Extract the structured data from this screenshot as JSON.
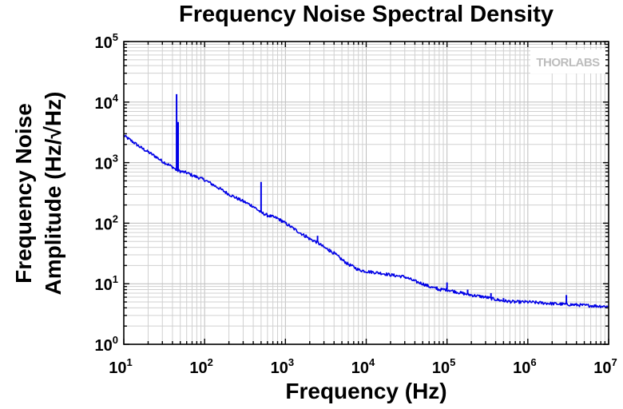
{
  "chart_data": {
    "type": "line",
    "title": "Frequency Noise Spectral Density",
    "ylabel_line1": "Frequency Noise",
    "ylabel_line2": "Amplitude (Hz/√Hz)",
    "xlabel": "Frequency (Hz)",
    "x_scale": "log",
    "y_scale": "log",
    "xlim": [
      10,
      10000000
    ],
    "ylim": [
      1,
      100000
    ],
    "grid": true,
    "watermark": "THORLABS",
    "x_ticks": [
      {
        "base": "10",
        "exp": "1"
      },
      {
        "base": "10",
        "exp": "2"
      },
      {
        "base": "10",
        "exp": "3"
      },
      {
        "base": "10",
        "exp": "4"
      },
      {
        "base": "10",
        "exp": "5"
      },
      {
        "base": "10",
        "exp": "6"
      },
      {
        "base": "10",
        "exp": "7"
      }
    ],
    "y_ticks": [
      {
        "base": "10",
        "exp": "0"
      },
      {
        "base": "10",
        "exp": "1"
      },
      {
        "base": "10",
        "exp": "2"
      },
      {
        "base": "10",
        "exp": "3"
      },
      {
        "base": "10",
        "exp": "4"
      },
      {
        "base": "10",
        "exp": "5"
      }
    ],
    "series": [
      {
        "color": "#0000e6",
        "points": [
          [
            10,
            2800
          ],
          [
            13,
            2200
          ],
          [
            16,
            1800
          ],
          [
            20,
            1500
          ],
          [
            25,
            1250
          ],
          [
            30,
            1050
          ],
          [
            40,
            850
          ],
          [
            45,
            750
          ],
          [
            50,
            720
          ],
          [
            60,
            680
          ],
          [
            70,
            620
          ],
          [
            80,
            580
          ],
          [
            100,
            520
          ],
          [
            150,
            380
          ],
          [
            200,
            300
          ],
          [
            300,
            230
          ],
          [
            400,
            190
          ],
          [
            500,
            150
          ],
          [
            600,
            135
          ],
          [
            800,
            120
          ],
          [
            1000,
            100
          ],
          [
            1500,
            70
          ],
          [
            2000,
            55
          ],
          [
            2500,
            48
          ],
          [
            3000,
            40
          ],
          [
            4000,
            32
          ],
          [
            5000,
            25
          ],
          [
            6000,
            21
          ],
          [
            7000,
            19
          ],
          [
            8000,
            17
          ],
          [
            10000,
            16
          ],
          [
            15000,
            15
          ],
          [
            20000,
            14
          ],
          [
            30000,
            13
          ],
          [
            40000,
            11
          ],
          [
            50000,
            10
          ],
          [
            60000,
            9
          ],
          [
            80000,
            8
          ],
          [
            100000,
            8
          ],
          [
            150000,
            7
          ],
          [
            200000,
            6.5
          ],
          [
            300000,
            6
          ],
          [
            400000,
            5.5
          ],
          [
            500000,
            5.2
          ],
          [
            700000,
            5
          ],
          [
            1000000,
            5
          ],
          [
            2000000,
            4.7
          ],
          [
            5000000,
            4.4
          ],
          [
            10000000,
            4.2
          ]
        ],
        "spikes": [
          [
            45,
            13500
          ],
          [
            47,
            4700
          ],
          [
            500,
            480
          ],
          [
            600,
            125
          ],
          [
            900,
            115
          ],
          [
            1800,
            65
          ],
          [
            2500,
            62
          ],
          [
            3500,
            38
          ],
          [
            75000,
            9
          ],
          [
            100000,
            10.5
          ],
          [
            150000,
            7.5
          ],
          [
            180000,
            8
          ],
          [
            350000,
            7
          ],
          [
            500000,
            5.8
          ],
          [
            3000000,
            6.5
          ]
        ]
      }
    ]
  }
}
